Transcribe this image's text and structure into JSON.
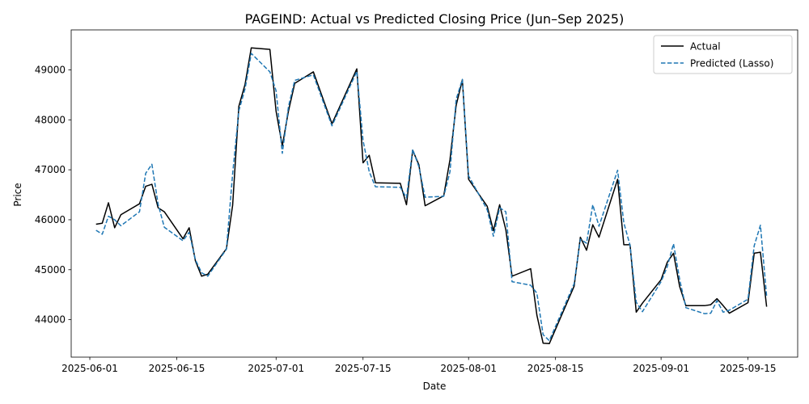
{
  "chart_data": {
    "type": "line",
    "title": "PAGEIND: Actual vs Predicted Closing Price (Jun–Sep 2025)",
    "xlabel": "Date",
    "ylabel": "Price",
    "xlim": [
      "2025-05-29",
      "2025-09-23"
    ],
    "ylim": [
      43250,
      49800
    ],
    "x_ticks": [
      "2025-06-01",
      "2025-06-15",
      "2025-07-01",
      "2025-07-15",
      "2025-08-01",
      "2025-08-15",
      "2025-09-01",
      "2025-09-15"
    ],
    "y_ticks": [
      44000,
      45000,
      46000,
      47000,
      48000,
      49000
    ],
    "grid": false,
    "legend_position": "top-right",
    "series": [
      {
        "name": "Actual",
        "color": "#000000",
        "style": "solid",
        "points": [
          [
            "2025-06-02",
            45910
          ],
          [
            "2025-06-03",
            45930
          ],
          [
            "2025-06-04",
            46340
          ],
          [
            "2025-06-05",
            45840
          ],
          [
            "2025-06-06",
            46100
          ],
          [
            "2025-06-09",
            46320
          ],
          [
            "2025-06-10",
            46670
          ],
          [
            "2025-06-11",
            46710
          ],
          [
            "2025-06-12",
            46240
          ],
          [
            "2025-06-13",
            46160
          ],
          [
            "2025-06-16",
            45620
          ],
          [
            "2025-06-17",
            45840
          ],
          [
            "2025-06-18",
            45180
          ],
          [
            "2025-06-19",
            44870
          ],
          [
            "2025-06-20",
            44910
          ],
          [
            "2025-06-23",
            45420
          ],
          [
            "2025-06-24",
            46290
          ],
          [
            "2025-06-25",
            48270
          ],
          [
            "2025-06-26",
            48710
          ],
          [
            "2025-06-27",
            49440
          ],
          [
            "2025-06-30",
            49410
          ],
          [
            "2025-07-01",
            48170
          ],
          [
            "2025-07-02",
            47480
          ],
          [
            "2025-07-03",
            48180
          ],
          [
            "2025-07-04",
            48730
          ],
          [
            "2025-07-07",
            48960
          ],
          [
            "2025-07-10",
            47920
          ],
          [
            "2025-07-14",
            49020
          ],
          [
            "2025-07-15",
            47140
          ],
          [
            "2025-07-16",
            47290
          ],
          [
            "2025-07-17",
            46740
          ],
          [
            "2025-07-21",
            46730
          ],
          [
            "2025-07-22",
            46300
          ],
          [
            "2025-07-23",
            47390
          ],
          [
            "2025-07-24",
            47100
          ],
          [
            "2025-07-25",
            46280
          ],
          [
            "2025-07-28",
            46480
          ],
          [
            "2025-07-29",
            47200
          ],
          [
            "2025-07-30",
            48290
          ],
          [
            "2025-07-31",
            48800
          ],
          [
            "2025-08-01",
            46810
          ],
          [
            "2025-08-04",
            46270
          ],
          [
            "2025-08-05",
            45780
          ],
          [
            "2025-08-06",
            46300
          ],
          [
            "2025-08-07",
            45800
          ],
          [
            "2025-08-08",
            44870
          ],
          [
            "2025-08-11",
            45020
          ],
          [
            "2025-08-12",
            44090
          ],
          [
            "2025-08-13",
            43530
          ],
          [
            "2025-08-14",
            43520
          ],
          [
            "2025-08-18",
            44670
          ],
          [
            "2025-08-19",
            45650
          ],
          [
            "2025-08-20",
            45390
          ],
          [
            "2025-08-21",
            45900
          ],
          [
            "2025-08-22",
            45650
          ],
          [
            "2025-08-25",
            46810
          ],
          [
            "2025-08-26",
            45500
          ],
          [
            "2025-08-27",
            45500
          ],
          [
            "2025-08-28",
            44150
          ],
          [
            "2025-08-29",
            44330
          ],
          [
            "2025-09-01",
            44800
          ],
          [
            "2025-09-02",
            45150
          ],
          [
            "2025-09-03",
            45330
          ],
          [
            "2025-09-04",
            44660
          ],
          [
            "2025-09-05",
            44280
          ],
          [
            "2025-09-08",
            44280
          ],
          [
            "2025-09-09",
            44300
          ],
          [
            "2025-09-10",
            44420
          ],
          [
            "2025-09-11",
            44280
          ],
          [
            "2025-09-12",
            44130
          ],
          [
            "2025-09-15",
            44340
          ],
          [
            "2025-09-16",
            45330
          ],
          [
            "2025-09-17",
            45350
          ],
          [
            "2025-09-18",
            44260
          ]
        ]
      },
      {
        "name": "Predicted (Lasso)",
        "color": "#1f77b4",
        "style": "dashed",
        "points": [
          [
            "2025-06-02",
            45790
          ],
          [
            "2025-06-03",
            45710
          ],
          [
            "2025-06-04",
            46070
          ],
          [
            "2025-06-05",
            46000
          ],
          [
            "2025-06-06",
            45880
          ],
          [
            "2025-06-09",
            46160
          ],
          [
            "2025-06-10",
            46930
          ],
          [
            "2025-06-11",
            47110
          ],
          [
            "2025-06-12",
            46310
          ],
          [
            "2025-06-13",
            45850
          ],
          [
            "2025-06-16",
            45580
          ],
          [
            "2025-06-17",
            45750
          ],
          [
            "2025-06-18",
            45200
          ],
          [
            "2025-06-19",
            44940
          ],
          [
            "2025-06-20",
            44870
          ],
          [
            "2025-06-23",
            45410
          ],
          [
            "2025-06-24",
            46920
          ],
          [
            "2025-06-25",
            48180
          ],
          [
            "2025-06-26",
            48620
          ],
          [
            "2025-06-27",
            49330
          ],
          [
            "2025-06-30",
            48960
          ],
          [
            "2025-07-01",
            48580
          ],
          [
            "2025-07-02",
            47330
          ],
          [
            "2025-07-03",
            48270
          ],
          [
            "2025-07-04",
            48790
          ],
          [
            "2025-07-07",
            48900
          ],
          [
            "2025-07-10",
            47880
          ],
          [
            "2025-07-14",
            48970
          ],
          [
            "2025-07-15",
            47590
          ],
          [
            "2025-07-16",
            46960
          ],
          [
            "2025-07-17",
            46660
          ],
          [
            "2025-07-21",
            46650
          ],
          [
            "2025-07-22",
            46440
          ],
          [
            "2025-07-23",
            47410
          ],
          [
            "2025-07-24",
            47060
          ],
          [
            "2025-07-25",
            46450
          ],
          [
            "2025-07-28",
            46470
          ],
          [
            "2025-07-29",
            46960
          ],
          [
            "2025-07-30",
            48410
          ],
          [
            "2025-07-31",
            48810
          ],
          [
            "2025-08-01",
            46880
          ],
          [
            "2025-08-04",
            46200
          ],
          [
            "2025-08-05",
            45670
          ],
          [
            "2025-08-06",
            46240
          ],
          [
            "2025-08-07",
            46160
          ],
          [
            "2025-08-08",
            44760
          ],
          [
            "2025-08-11",
            44690
          ],
          [
            "2025-08-12",
            44530
          ],
          [
            "2025-08-13",
            43700
          ],
          [
            "2025-08-14",
            43580
          ],
          [
            "2025-08-18",
            44720
          ],
          [
            "2025-08-19",
            45610
          ],
          [
            "2025-08-20",
            45530
          ],
          [
            "2025-08-21",
            46300
          ],
          [
            "2025-08-22",
            45870
          ],
          [
            "2025-08-25",
            46990
          ],
          [
            "2025-08-26",
            45940
          ],
          [
            "2025-08-27",
            45490
          ],
          [
            "2025-08-28",
            44350
          ],
          [
            "2025-08-29",
            44160
          ],
          [
            "2025-09-01",
            44760
          ],
          [
            "2025-09-02",
            45060
          ],
          [
            "2025-09-03",
            45520
          ],
          [
            "2025-09-04",
            44800
          ],
          [
            "2025-09-05",
            44240
          ],
          [
            "2025-09-08",
            44120
          ],
          [
            "2025-09-09",
            44130
          ],
          [
            "2025-09-10",
            44380
          ],
          [
            "2025-09-11",
            44150
          ],
          [
            "2025-09-12",
            44190
          ],
          [
            "2025-09-15",
            44410
          ],
          [
            "2025-09-16",
            45480
          ],
          [
            "2025-09-17",
            45890
          ],
          [
            "2025-09-18",
            44470
          ]
        ]
      }
    ]
  }
}
